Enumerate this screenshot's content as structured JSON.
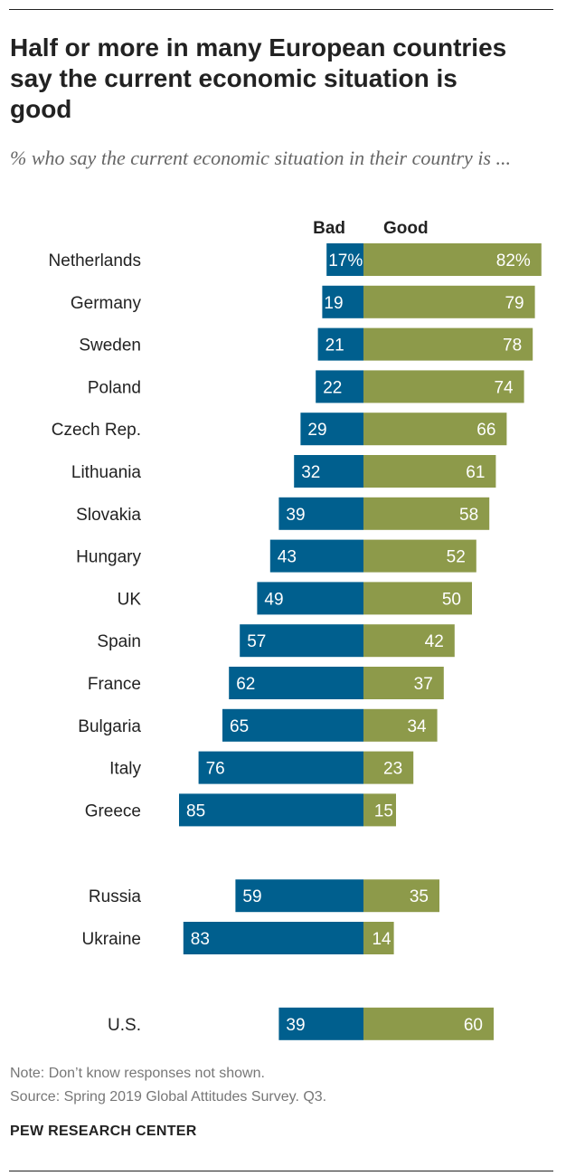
{
  "chart_data": {
    "type": "bar",
    "orientation": "diverging-horizontal",
    "title": "Half or more in many European countries say the current economic situation is good",
    "subtitle": "% who say the current economic situation in their country is ...",
    "legend": [
      "Bad",
      "Good"
    ],
    "colors": {
      "bad": "#005F8E",
      "good": "#8D9A4A"
    },
    "groups": [
      [
        {
          "country": "Netherlands",
          "bad": 17,
          "good": 82,
          "bad_label": "17%",
          "good_label": "82%"
        },
        {
          "country": "Germany",
          "bad": 19,
          "good": 79,
          "bad_label": "19",
          "good_label": "79"
        },
        {
          "country": "Sweden",
          "bad": 21,
          "good": 78,
          "bad_label": "21",
          "good_label": "78"
        },
        {
          "country": "Poland",
          "bad": 22,
          "good": 74,
          "bad_label": "22",
          "good_label": "74"
        },
        {
          "country": "Czech Rep.",
          "bad": 29,
          "good": 66,
          "bad_label": "29",
          "good_label": "66"
        },
        {
          "country": "Lithuania",
          "bad": 32,
          "good": 61,
          "bad_label": "32",
          "good_label": "61"
        },
        {
          "country": "Slovakia",
          "bad": 39,
          "good": 58,
          "bad_label": "39",
          "good_label": "58"
        },
        {
          "country": "Hungary",
          "bad": 43,
          "good": 52,
          "bad_label": "43",
          "good_label": "52"
        },
        {
          "country": "UK",
          "bad": 49,
          "good": 50,
          "bad_label": "49",
          "good_label": "50"
        },
        {
          "country": "Spain",
          "bad": 57,
          "good": 42,
          "bad_label": "57",
          "good_label": "42"
        },
        {
          "country": "France",
          "bad": 62,
          "good": 37,
          "bad_label": "62",
          "good_label": "37"
        },
        {
          "country": "Bulgaria",
          "bad": 65,
          "good": 34,
          "bad_label": "65",
          "good_label": "34"
        },
        {
          "country": "Italy",
          "bad": 76,
          "good": 23,
          "bad_label": "76",
          "good_label": "23"
        },
        {
          "country": "Greece",
          "bad": 85,
          "good": 15,
          "bad_label": "85",
          "good_label": "15"
        }
      ],
      [
        {
          "country": "Russia",
          "bad": 59,
          "good": 35,
          "bad_label": "59",
          "good_label": "35"
        },
        {
          "country": "Ukraine",
          "bad": 83,
          "good": 14,
          "bad_label": "83",
          "good_label": "14"
        }
      ],
      [
        {
          "country": "U.S.",
          "bad": 39,
          "good": 60,
          "bad_label": "39",
          "good_label": "60"
        }
      ]
    ]
  },
  "footer": {
    "note": "Note: Don’t know responses not shown.",
    "source": "Source: Spring 2019 Global Attitudes Survey. Q3.",
    "brand": "PEW RESEARCH CENTER"
  }
}
